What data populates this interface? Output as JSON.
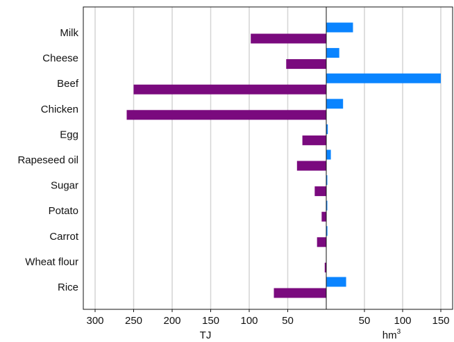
{
  "chart_data": {
    "type": "bar",
    "orientation": "horizontal",
    "categories": [
      "Milk",
      "Cheese",
      "Beef",
      "Chicken",
      "Egg",
      "Rapeseed oil",
      "Sugar",
      "Potato",
      "Carrot",
      "Wheat flour",
      "Rice"
    ],
    "series": [
      {
        "axis": "left",
        "color": "#7a0a7e",
        "values": [
          98,
          52,
          250,
          259,
          31,
          38,
          15,
          6,
          12,
          2,
          68
        ]
      },
      {
        "axis": "right",
        "color": "#0a84ff",
        "values": [
          35,
          17,
          150,
          22,
          2,
          6,
          1,
          0.5,
          1.5,
          0,
          26
        ]
      }
    ],
    "left_axis": {
      "label": "TJ",
      "range": [
        320,
        0
      ],
      "ticks": [
        300,
        250,
        200,
        150,
        100,
        50
      ]
    },
    "right_axis": {
      "label": "hm",
      "label_superscript": "3",
      "range": [
        0,
        165
      ],
      "ticks": [
        50,
        100,
        150
      ]
    },
    "grid": true,
    "legend": "none"
  }
}
